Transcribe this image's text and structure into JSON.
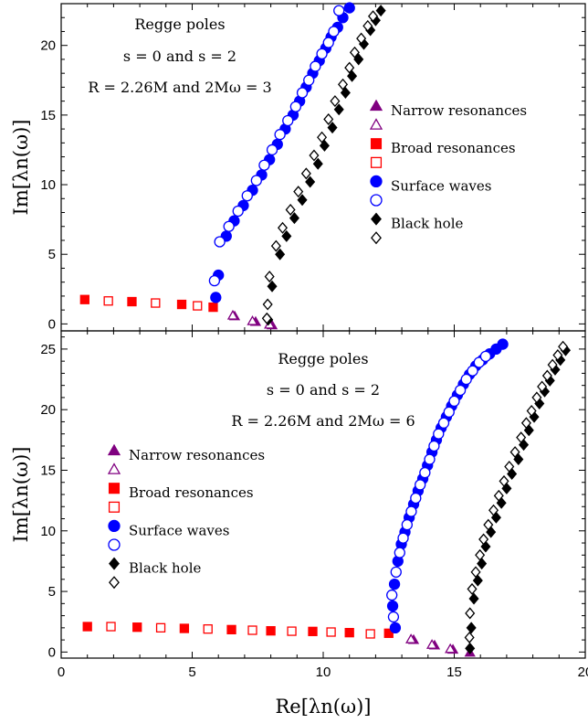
{
  "chart_data": [
    {
      "type": "scatter",
      "title": "",
      "annotation": [
        "Regge poles",
        "s = 0 and s = 2",
        "R = 2.26M and 2Mω = 3"
      ],
      "xlabel": "",
      "ylabel": "Im[λn(ω)]",
      "xlim": [
        0,
        20
      ],
      "ylim": [
        -0.5,
        23
      ],
      "xticks": [
        0,
        5,
        10,
        15,
        20
      ],
      "yticks": [
        0,
        5,
        10,
        15,
        20
      ],
      "legend": "right",
      "series": [
        {
          "name": "Narrow resonances",
          "marker": "triangle",
          "fill": "filled",
          "color": "#800080",
          "x": [
            6.62,
            7.42,
            8.05
          ],
          "y": [
            0.55,
            0.15,
            -0.1
          ]
        },
        {
          "name": "",
          "marker": "triangle",
          "fill": "open",
          "color": "#800080",
          "x": [
            6.55,
            7.3,
            7.95
          ],
          "y": [
            0.6,
            0.2,
            -0.05
          ]
        },
        {
          "name": "Broad resonances",
          "marker": "square",
          "fill": "filled",
          "color": "#ff0000",
          "x": [
            0.9,
            2.7,
            4.6,
            5.8
          ],
          "y": [
            1.75,
            1.6,
            1.4,
            1.2
          ]
        },
        {
          "name": "",
          "marker": "square",
          "fill": "open",
          "color": "#ff0000",
          "x": [
            1.8,
            3.6,
            5.2
          ],
          "y": [
            1.65,
            1.5,
            1.3
          ]
        },
        {
          "name": "Surface waves",
          "marker": "circle",
          "fill": "filled",
          "color": "#0000ff",
          "x": [
            5.9,
            6.0,
            6.3,
            6.6,
            6.95,
            7.3,
            7.65,
            7.95,
            8.25,
            8.55,
            8.85,
            9.1,
            9.35,
            9.6,
            9.85,
            10.1,
            10.3,
            10.55,
            10.75,
            11.0
          ],
          "y": [
            1.9,
            3.5,
            6.3,
            7.4,
            8.5,
            9.6,
            10.7,
            11.8,
            12.9,
            14.0,
            15.0,
            16.0,
            17.0,
            18.0,
            18.9,
            19.8,
            20.6,
            21.3,
            22.0,
            22.7
          ]
        },
        {
          "name": "",
          "marker": "circle",
          "fill": "open",
          "color": "#0000ff",
          "x": [
            5.85,
            6.05,
            6.4,
            6.75,
            7.1,
            7.45,
            7.75,
            8.05,
            8.35,
            8.65,
            8.95,
            9.2,
            9.45,
            9.7,
            9.95,
            10.2,
            10.4,
            10.6
          ],
          "y": [
            3.1,
            5.9,
            7.0,
            8.1,
            9.2,
            10.3,
            11.4,
            12.5,
            13.6,
            14.6,
            15.6,
            16.6,
            17.5,
            18.5,
            19.4,
            20.2,
            21.0,
            22.5
          ]
        },
        {
          "name": "Black hole",
          "marker": "diamond",
          "fill": "filled",
          "color": "#000000",
          "x": [
            7.9,
            8.05,
            8.35,
            8.6,
            8.9,
            9.2,
            9.5,
            9.8,
            10.05,
            10.35,
            10.6,
            10.85,
            11.1,
            11.35,
            11.55,
            11.8,
            12.0,
            12.2
          ],
          "y": [
            0.3,
            2.7,
            5.0,
            6.3,
            7.6,
            8.9,
            10.2,
            11.5,
            12.8,
            14.1,
            15.4,
            16.6,
            17.8,
            19.0,
            20.1,
            21.1,
            21.8,
            22.5
          ]
        },
        {
          "name": "",
          "marker": "diamond",
          "fill": "open",
          "color": "#000000",
          "x": [
            7.85,
            7.88,
            7.95,
            8.2,
            8.45,
            8.75,
            9.05,
            9.35,
            9.65,
            9.95,
            10.2,
            10.45,
            10.75,
            11.0,
            11.2,
            11.45,
            11.7,
            11.9
          ],
          "y": [
            0.4,
            1.4,
            3.4,
            5.6,
            6.9,
            8.2,
            9.5,
            10.8,
            12.1,
            13.4,
            14.7,
            16.0,
            17.2,
            18.4,
            19.5,
            20.5,
            21.4,
            22.1
          ]
        }
      ]
    },
    {
      "type": "scatter",
      "title": "",
      "annotation": [
        "Regge poles",
        "s = 0 and s = 2",
        "R = 2.26M and 2Mω = 6"
      ],
      "xlabel": "Re[λn(ω)]",
      "ylabel": "Im[λn(ω)]",
      "xlim": [
        0,
        20
      ],
      "ylim": [
        -0.5,
        26.5
      ],
      "xticks": [
        0,
        5,
        10,
        15,
        20
      ],
      "yticks": [
        0,
        5,
        10,
        15,
        20,
        25
      ],
      "legend": "left",
      "series": [
        {
          "name": "Narrow resonances",
          "marker": "triangle",
          "fill": "filled",
          "color": "#800080",
          "x": [
            13.45,
            14.25,
            14.95,
            15.6
          ],
          "y": [
            1.0,
            0.55,
            0.2,
            -0.05
          ]
        },
        {
          "name": "",
          "marker": "triangle",
          "fill": "open",
          "color": "#800080",
          "x": [
            13.35,
            14.15,
            14.85
          ],
          "y": [
            1.05,
            0.6,
            0.25
          ]
        },
        {
          "name": "Broad resonances",
          "marker": "square",
          "fill": "filled",
          "color": "#ff0000",
          "x": [
            1.0,
            2.9,
            4.7,
            6.5,
            8.0,
            9.6,
            11.0,
            12.5
          ],
          "y": [
            2.1,
            2.05,
            1.95,
            1.85,
            1.75,
            1.7,
            1.6,
            1.55
          ]
        },
        {
          "name": "",
          "marker": "square",
          "fill": "open",
          "color": "#ff0000",
          "x": [
            1.9,
            3.8,
            5.6,
            7.3,
            8.8,
            10.3,
            11.8
          ],
          "y": [
            2.1,
            2.0,
            1.9,
            1.8,
            1.72,
            1.65,
            1.5
          ]
        },
        {
          "name": "Surface waves",
          "marker": "circle",
          "fill": "filled",
          "color": "#0000ff",
          "x": [
            12.75,
            12.65,
            12.72,
            12.85,
            12.98,
            13.12,
            13.28,
            13.45,
            13.62,
            13.8,
            13.98,
            14.15,
            14.32,
            14.5,
            14.7,
            14.9,
            15.12,
            15.35,
            15.58,
            15.82,
            16.08,
            16.35,
            16.6,
            16.85
          ],
          "y": [
            2.0,
            3.8,
            5.6,
            7.5,
            8.9,
            9.9,
            11.1,
            12.2,
            13.3,
            14.3,
            15.4,
            16.5,
            17.5,
            18.5,
            19.4,
            20.3,
            21.2,
            22.1,
            22.9,
            23.6,
            24.1,
            24.6,
            25.0,
            25.4
          ]
        },
        {
          "name": "",
          "marker": "circle",
          "fill": "open",
          "color": "#0000ff",
          "x": [
            12.68,
            12.62,
            12.78,
            12.92,
            13.05,
            13.2,
            13.36,
            13.53,
            13.7,
            13.88,
            14.06,
            14.23,
            14.4,
            14.6,
            14.8,
            15.0,
            15.23,
            15.46,
            15.7,
            15.95,
            16.2
          ],
          "y": [
            2.9,
            4.7,
            6.6,
            8.2,
            9.4,
            10.5,
            11.6,
            12.7,
            13.8,
            14.8,
            15.9,
            17.0,
            18.0,
            18.9,
            19.8,
            20.7,
            21.6,
            22.5,
            23.2,
            23.9,
            24.4
          ]
        },
        {
          "name": "Black hole",
          "marker": "diamond",
          "fill": "filled",
          "color": "#000000",
          "x": [
            15.6,
            15.65,
            15.75,
            15.9,
            16.05,
            16.2,
            16.4,
            16.6,
            16.8,
            17.0,
            17.2,
            17.45,
            17.65,
            17.85,
            18.05,
            18.25,
            18.45,
            18.65,
            18.85,
            19.05,
            19.25
          ],
          "y": [
            0.3,
            2.0,
            4.4,
            5.9,
            7.3,
            8.7,
            9.9,
            11.1,
            12.3,
            13.5,
            14.7,
            15.9,
            17.1,
            18.3,
            19.4,
            20.5,
            21.5,
            22.4,
            23.3,
            24.1,
            24.9
          ]
        },
        {
          "name": "",
          "marker": "diamond",
          "fill": "open",
          "color": "#000000",
          "x": [
            15.58,
            15.6,
            15.68,
            15.82,
            15.98,
            16.12,
            16.3,
            16.5,
            16.7,
            16.9,
            17.1,
            17.32,
            17.55,
            17.75,
            17.95,
            18.15,
            18.35,
            18.55,
            18.75,
            18.95,
            19.15
          ],
          "y": [
            1.2,
            3.2,
            5.2,
            6.6,
            8.0,
            9.3,
            10.5,
            11.7,
            12.9,
            14.1,
            15.3,
            16.5,
            17.7,
            18.9,
            19.9,
            21.0,
            21.9,
            22.8,
            23.7,
            24.5,
            25.2
          ]
        }
      ]
    }
  ]
}
